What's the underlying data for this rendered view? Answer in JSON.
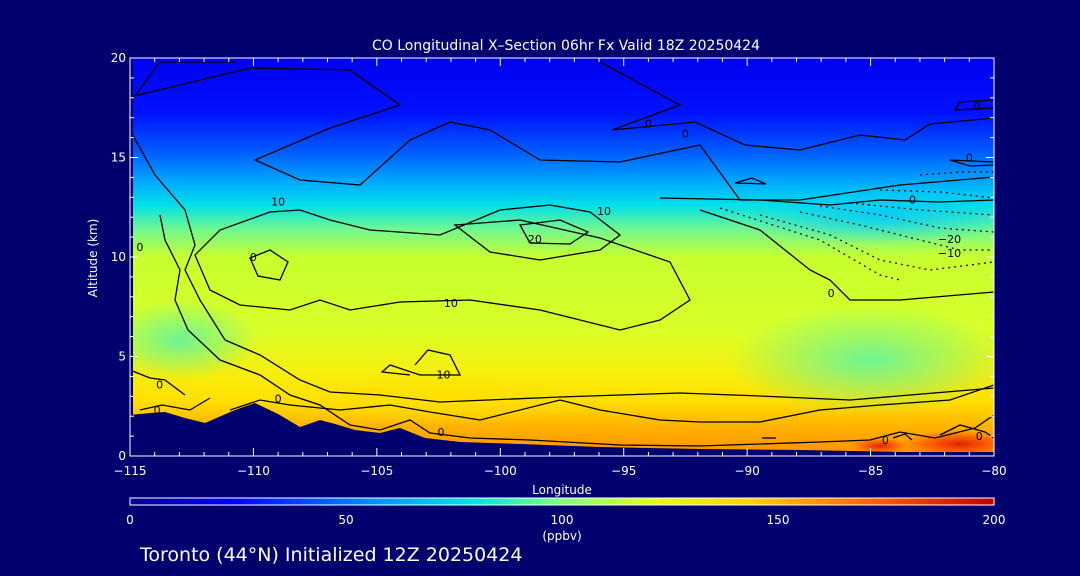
{
  "chart_data": {
    "type": "heatmap",
    "title": "CO Longitudinal X–Section 06hr  Fx Valid 18Z 20250424",
    "xlabel": "Longitude",
    "ylabel": "Altitude (km)",
    "xlim": [
      -115,
      -80
    ],
    "ylim": [
      0,
      20
    ],
    "x_ticks": [
      "−115",
      "−110",
      "−105",
      "−100",
      "−95",
      "−90",
      "−85",
      "−80"
    ],
    "y_ticks": [
      "0",
      "5",
      "10",
      "15",
      "20"
    ],
    "colorbar": {
      "min": 0,
      "max": 200,
      "ticks": [
        "0",
        "50",
        "100",
        "150",
        "200"
      ],
      "unit": "(ppbv)",
      "colors": [
        "#00008c",
        "#0000ff",
        "#0090ff",
        "#00e6e6",
        "#80ff80",
        "#e0ff20",
        "#ffd000",
        "#ff6000",
        "#c00000"
      ]
    },
    "contour_labels": [
      {
        "text": "0",
        "x": -114.6,
        "y": 10.5
      },
      {
        "text": "10",
        "x": -109.0,
        "y": 12.8
      },
      {
        "text": "0",
        "x": -110.0,
        "y": 10.0
      },
      {
        "text": "10",
        "x": -95.8,
        "y": 12.3
      },
      {
        "text": "20",
        "x": -98.6,
        "y": 10.9
      },
      {
        "text": "10",
        "x": -102.0,
        "y": 7.7
      },
      {
        "text": "10",
        "x": -102.3,
        "y": 4.1
      },
      {
        "text": "0",
        "x": -113.8,
        "y": 3.6
      },
      {
        "text": "0",
        "x": -113.9,
        "y": 2.3
      },
      {
        "text": "0",
        "x": -109.0,
        "y": 2.9
      },
      {
        "text": "0",
        "x": -102.4,
        "y": 1.2
      },
      {
        "text": "0",
        "x": -94.0,
        "y": 16.7
      },
      {
        "text": "0",
        "x": -92.5,
        "y": 16.2
      },
      {
        "text": "0",
        "x": -80.7,
        "y": 17.6
      },
      {
        "text": "0",
        "x": -81.0,
        "y": 15.0
      },
      {
        "text": "0",
        "x": -83.3,
        "y": 12.9
      },
      {
        "text": "−20",
        "x": -81.8,
        "y": 10.9
      },
      {
        "text": "−10",
        "x": -81.8,
        "y": 10.2
      },
      {
        "text": "0",
        "x": -86.6,
        "y": 8.2
      },
      {
        "text": "0",
        "x": -84.4,
        "y": 0.8
      },
      {
        "text": "0",
        "x": -80.6,
        "y": 1.0
      }
    ]
  },
  "footer": {
    "text": "Toronto (44°N) Initialized 12Z 20250424"
  }
}
